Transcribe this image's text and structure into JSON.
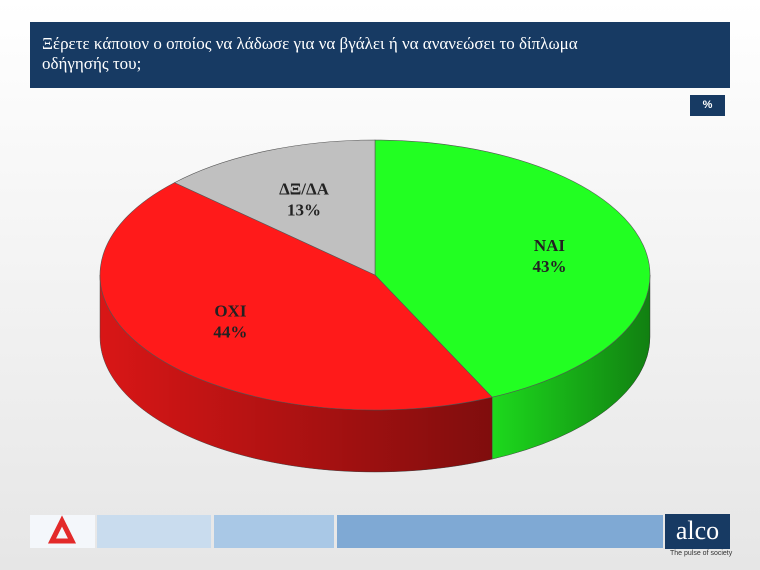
{
  "chart_data": {
    "type": "pie3d",
    "title": "Ξέρετε κάποιον ο οποίος να λάδωσε για να βγάλει ή να ανανεώσει το δίπλωμα οδήγησής του;",
    "unit_label": "%",
    "categories": [
      "ΝΑΙ",
      "ΟΧΙ",
      "ΔΞ/ΔΑ"
    ],
    "values": [
      43,
      44,
      13
    ],
    "value_labels": [
      "43%",
      "44%",
      "13%"
    ],
    "colors": [
      "#22ff22",
      "#ff1a1a",
      "#c0c0c0"
    ]
  },
  "footer": {
    "logo": "alco",
    "tagline": "The pulse of society"
  }
}
